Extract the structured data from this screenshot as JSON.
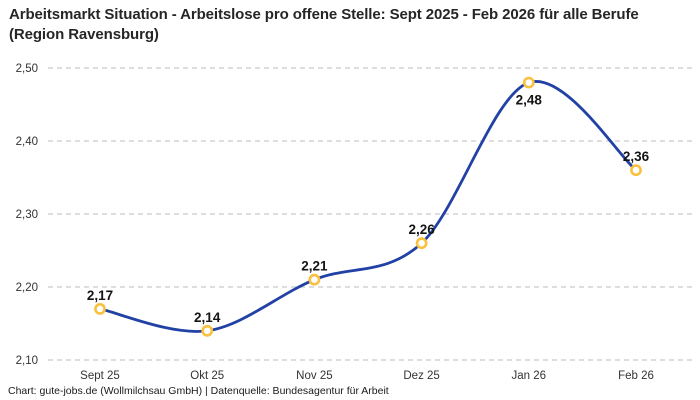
{
  "header": {
    "title": "Arbeitsmarkt Situation - Arbeitslose pro offene Stelle: Sept 2025 - Feb 2026 für alle Berufe (Region Ravensburg)"
  },
  "footer": {
    "credit": "Chart: gute-jobs.de (Wollmilchsau GmbH) | Datenquelle: Bundesagentur für Arbeit"
  },
  "chart_data": {
    "type": "line",
    "title": "Arbeitsmarkt Situation - Arbeitslose pro offene Stelle: Sept 2025 - Feb 2026 für alle Berufe (Region Ravensburg)",
    "categories": [
      "Sept 25",
      "Okt 25",
      "Nov 25",
      "Dez 25",
      "Jan 26",
      "Feb 26"
    ],
    "values": [
      2.17,
      2.14,
      2.21,
      2.26,
      2.48,
      2.36
    ],
    "value_labels": [
      "2,17",
      "2,14",
      "2,21",
      "2,26",
      "2,48",
      "2,36"
    ],
    "value_label_positions": [
      "above",
      "above",
      "above",
      "above",
      "below",
      "above"
    ],
    "y_ticks": [
      {
        "value": 2.1,
        "label": "2,10"
      },
      {
        "value": 2.2,
        "label": "2,20"
      },
      {
        "value": 2.3,
        "label": "2,30"
      },
      {
        "value": 2.4,
        "label": "2,40"
      },
      {
        "value": 2.5,
        "label": "2,50"
      }
    ],
    "ylim": [
      2.1,
      2.5
    ],
    "xlabel": "",
    "ylabel": "",
    "grid": "horizontal-dashed",
    "legend": "none",
    "colors": {
      "line": "#2141a5",
      "marker_ring": "#f9c13f",
      "marker_fill": "#ffffff",
      "gridline": "#c9c9c9",
      "tick_text": "#333333",
      "label_text": "#141414"
    }
  }
}
